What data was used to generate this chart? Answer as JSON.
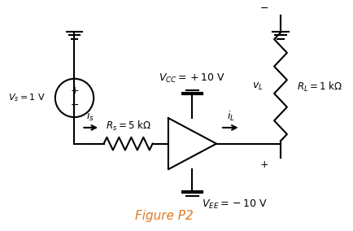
{
  "bg_color": "#ffffff",
  "fig_caption": "Figure P2",
  "caption_color": "#e07820",
  "caption_fontsize": 11,
  "line_color": "#000000",
  "lw": 1.5
}
